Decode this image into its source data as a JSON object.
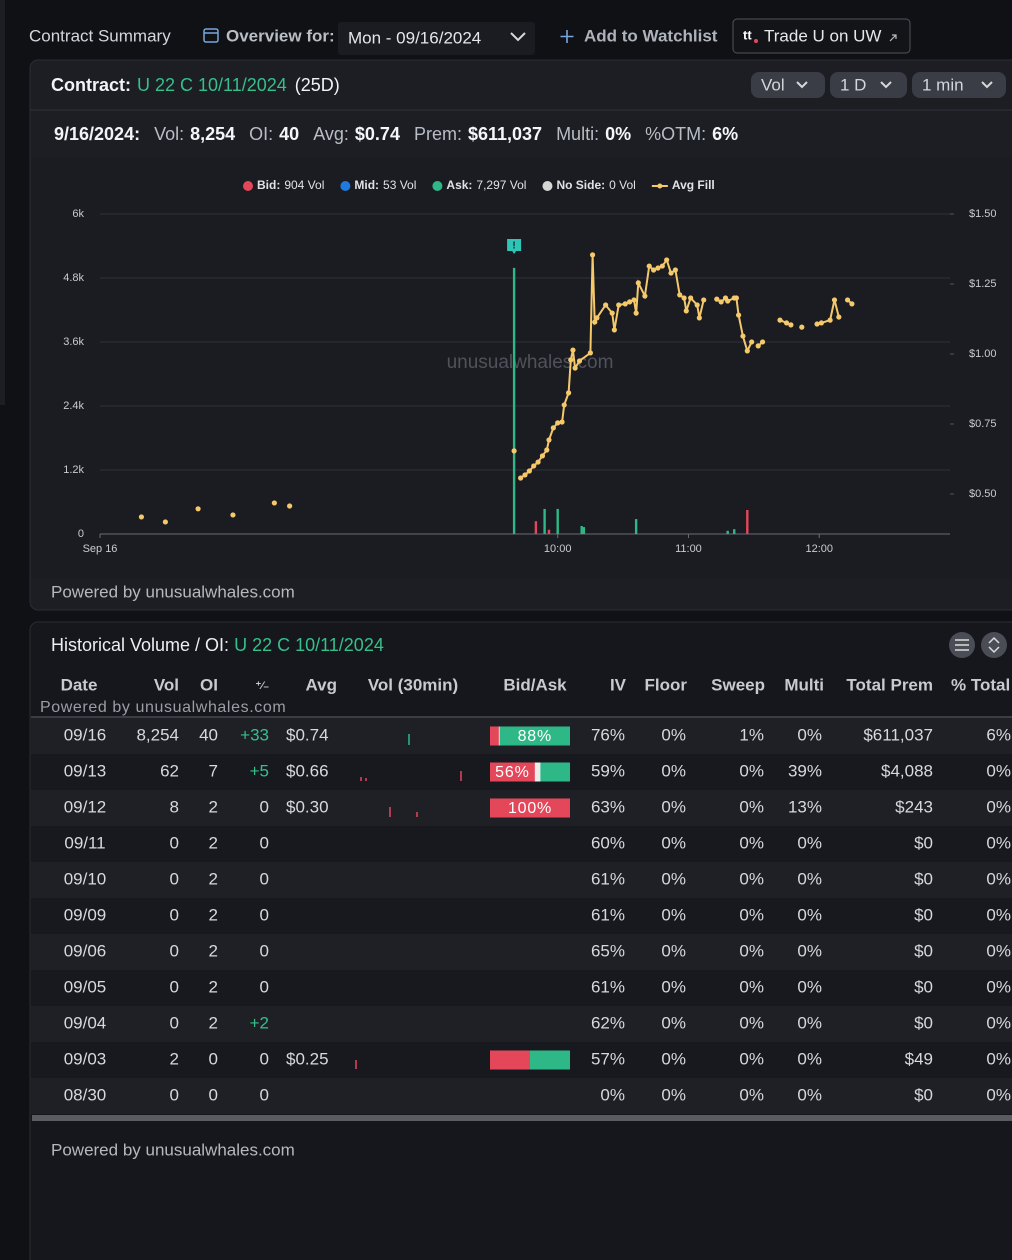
{
  "top_bar": {
    "title": "Contract Summary",
    "overview_label": "Overview for:",
    "date_select": "Mon - 09/16/2024",
    "watchlist": "Add to Watchlist",
    "trade_logo": "tt",
    "trade_button": "Trade U on UW"
  },
  "contract_panel": {
    "label": "Contract:",
    "contract": "U 22 C 10/11/2024",
    "dte": "(25D)",
    "selects": [
      "Vol",
      "1 D",
      "1 min"
    ],
    "stats_date": "9/16/2024:",
    "stats": [
      {
        "label": "Vol:",
        "value": "8,254"
      },
      {
        "label": "OI:",
        "value": "40"
      },
      {
        "label": "Avg:",
        "value": "$0.74"
      },
      {
        "label": "Prem:",
        "value": "$611,037"
      },
      {
        "label": "Multi:",
        "value": "0%"
      },
      {
        "label": "%OTM:",
        "value": "6%"
      }
    ],
    "powered": "Powered by unusualwhales.com"
  },
  "chart_data": {
    "type": "bar",
    "watermark": "unusualwhales.com",
    "annotation": {
      "label": "!",
      "x": 580
    },
    "xlim": [
      390,
      780
    ],
    "xticks": [
      {
        "value": 390,
        "label": "Sep 16"
      },
      {
        "value": 600,
        "label": "10:00"
      },
      {
        "value": 660,
        "label": "11:00"
      },
      {
        "value": 720,
        "label": "12:00"
      }
    ],
    "ylim": [
      0,
      6000
    ],
    "yticks": [
      0,
      {
        "value": 1200,
        "label": "1.2k"
      },
      {
        "value": 2400,
        "label": "2.4k"
      },
      {
        "value": 3600,
        "label": "3.6k"
      },
      {
        "value": 4800,
        "label": "4.8k"
      },
      {
        "value": 6000,
        "label": "6k"
      }
    ],
    "y2lim": [
      0.357,
      1.5
    ],
    "y2ticks": [
      {
        "value": 0.5,
        "label": "$0.50"
      },
      {
        "value": 0.75,
        "label": "$0.75"
      },
      {
        "value": 1,
        "label": "$1.00"
      },
      {
        "value": 1.25,
        "label": "$1.25"
      },
      {
        "value": 1.5,
        "label": "$1.50"
      }
    ],
    "grid": true,
    "series": [
      {
        "name": "Bid:",
        "label": "904 Vol",
        "color": "#e5475a",
        "x": [
          590,
          596,
          687
        ],
        "values": [
          240,
          80,
          450
        ]
      },
      {
        "name": "Mid:",
        "label": "53 Vol",
        "color": "#1f7ae0",
        "x": [],
        "values": []
      },
      {
        "name": "Ask:",
        "label": "7,297 Vol",
        "color": "#2fb887",
        "x": [
          580,
          594,
          600,
          611,
          612,
          636,
          678,
          681
        ],
        "values": [
          4990,
          470,
          470,
          150,
          130,
          280,
          60,
          90
        ]
      },
      {
        "name": "No Side:",
        "label": "0 Vol",
        "color": "#d6d6d6",
        "x": [],
        "values": []
      },
      {
        "name": "Avg Fill",
        "type": "line",
        "axis": "y2",
        "color": "#f5c86a",
        "x": [
          409,
          null,
          420,
          null,
          435,
          null,
          451,
          null,
          470,
          null,
          477,
          null,
          580,
          null,
          583,
          585,
          587,
          589,
          591,
          593,
          595,
          596,
          598,
          600,
          602,
          603,
          605,
          606,
          607,
          608,
          610,
          615,
          616,
          617,
          618,
          622,
          625,
          626,
          628,
          631,
          633,
          635,
          636,
          637,
          640,
          642,
          644,
          646,
          648,
          650,
          652,
          654,
          656,
          658,
          659,
          661,
          664,
          665,
          667,
          null,
          673,
          675,
          677,
          678,
          681,
          682,
          683,
          685,
          687,
          689,
          null,
          692,
          694,
          null,
          702,
          705,
          707,
          null,
          712,
          null,
          719,
          721,
          725,
          727,
          729,
          null,
          733,
          735
        ],
        "values": [
          0.418,
          null,
          0.4,
          null,
          0.447,
          null,
          0.425,
          null,
          0.468,
          null,
          0.457,
          null,
          0.654,
          null,
          0.557,
          0.568,
          0.582,
          0.6,
          0.614,
          0.636,
          0.657,
          0.693,
          0.736,
          0.754,
          0.757,
          0.818,
          0.861,
          0.979,
          1.014,
          0.95,
          0.975,
          1.004,
          1.354,
          1.114,
          1.129,
          1.175,
          1.146,
          1.086,
          1.175,
          1.179,
          1.186,
          1.193,
          1.146,
          1.254,
          1.207,
          1.314,
          1.3,
          1.307,
          1.314,
          1.336,
          1.289,
          1.3,
          1.211,
          1.2,
          1.154,
          1.2,
          1.175,
          1.129,
          1.193,
          null,
          1.196,
          1.186,
          1.2,
          1.189,
          1.2,
          1.2,
          1.139,
          1.064,
          1.011,
          1.043,
          null,
          1.029,
          1.043,
          null,
          1.121,
          1.111,
          1.104,
          null,
          1.096,
          null,
          1.107,
          1.111,
          1.121,
          1.193,
          1.132,
          null,
          1.193,
          1.179
        ]
      }
    ]
  },
  "history": {
    "title": "Historical Volume / OI:",
    "contract": "U 22 C 10/11/2024",
    "watermark": "Powered by unusualwhales.com",
    "powered": "Powered by unusualwhales.com",
    "columns": [
      "Date",
      "Vol",
      "OI",
      "⁺⁄₋",
      "Avg",
      "Vol (30min)",
      "Bid/Ask",
      "IV",
      "Floor",
      "Sweep",
      "Multi",
      "Total Prem",
      "% Total"
    ],
    "rows": [
      {
        "date": "09/16",
        "vol": "8,254",
        "oi": "40",
        "change": "+33",
        "avg": "$0.74",
        "bid": 11,
        "ask": 88,
        "bid_ask_label": "88%",
        "iv": "76%",
        "floor": "0%",
        "sweep": "1%",
        "multi": "0%",
        "total_prem": "$611,037",
        "pct_total": "6%"
      },
      {
        "date": "09/13",
        "vol": "62",
        "oi": "7",
        "change": "+5",
        "avg": "$0.66",
        "bid": 56,
        "ask": 37,
        "bid_ask_label": "56%",
        "iv": "59%",
        "floor": "0%",
        "sweep": "0%",
        "multi": "39%",
        "total_prem": "$4,088",
        "pct_total": "0%"
      },
      {
        "date": "09/12",
        "vol": "8",
        "oi": "2",
        "change": "0",
        "avg": "$0.30",
        "bid": 100,
        "ask": 0,
        "bid_ask_label": "100%",
        "iv": "63%",
        "floor": "0%",
        "sweep": "0%",
        "multi": "13%",
        "total_prem": "$243",
        "pct_total": "0%"
      },
      {
        "date": "09/11",
        "vol": "0",
        "oi": "2",
        "change": "0",
        "iv": "60%",
        "floor": "0%",
        "sweep": "0%",
        "multi": "0%",
        "total_prem": "$0",
        "pct_total": "0%"
      },
      {
        "date": "09/10",
        "vol": "0",
        "oi": "2",
        "change": "0",
        "iv": "61%",
        "floor": "0%",
        "sweep": "0%",
        "multi": "0%",
        "total_prem": "$0",
        "pct_total": "0%"
      },
      {
        "date": "09/09",
        "vol": "0",
        "oi": "2",
        "change": "0",
        "iv": "61%",
        "floor": "0%",
        "sweep": "0%",
        "multi": "0%",
        "total_prem": "$0",
        "pct_total": "0%"
      },
      {
        "date": "09/06",
        "vol": "0",
        "oi": "2",
        "change": "0",
        "iv": "65%",
        "floor": "0%",
        "sweep": "0%",
        "multi": "0%",
        "total_prem": "$0",
        "pct_total": "0%"
      },
      {
        "date": "09/05",
        "vol": "0",
        "oi": "2",
        "change": "0",
        "iv": "61%",
        "floor": "0%",
        "sweep": "0%",
        "multi": "0%",
        "total_prem": "$0",
        "pct_total": "0%"
      },
      {
        "date": "09/04",
        "vol": "0",
        "oi": "2",
        "change": "+2",
        "iv": "62%",
        "floor": "0%",
        "sweep": "0%",
        "multi": "0%",
        "total_prem": "$0",
        "pct_total": "0%"
      },
      {
        "date": "09/03",
        "vol": "2",
        "oi": "0",
        "change": "0",
        "avg": "$0.25",
        "bid": 50,
        "ask": 50,
        "iv": "57%",
        "floor": "0%",
        "sweep": "0%",
        "multi": "0%",
        "total_prem": "$49",
        "pct_total": "0%"
      },
      {
        "date": "08/30",
        "vol": "0",
        "oi": "0",
        "change": "0",
        "iv": "0%",
        "floor": "0%",
        "sweep": "0%",
        "multi": "0%",
        "total_prem": "$0",
        "pct_total": "0%"
      }
    ]
  }
}
